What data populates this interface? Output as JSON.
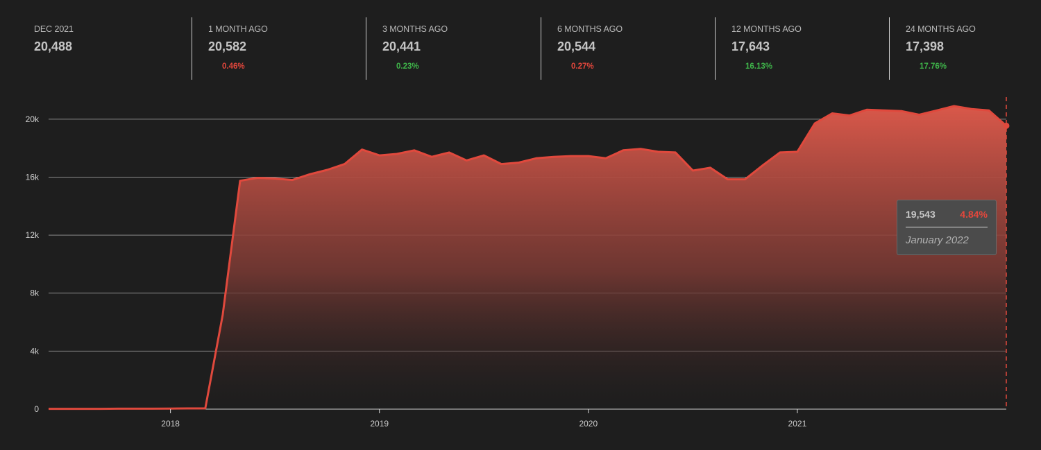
{
  "colors": {
    "background": "#1e1e1e",
    "accent": "#d9584a",
    "line": "#e0493d",
    "negative": "#e4473c",
    "positive": "#3fb54a"
  },
  "stats": [
    {
      "label": "DEC 2021",
      "value": "20,488",
      "change": "",
      "direction": ""
    },
    {
      "label": "1 MONTH AGO",
      "value": "20,582",
      "change": "0.46%",
      "direction": "negative"
    },
    {
      "label": "3 MONTHS AGO",
      "value": "20,441",
      "change": "0.23%",
      "direction": "positive"
    },
    {
      "label": "6 MONTHS AGO",
      "value": "20,544",
      "change": "0.27%",
      "direction": "negative"
    },
    {
      "label": "12 MONTHS AGO",
      "value": "17,643",
      "change": "16.13%",
      "direction": "positive"
    },
    {
      "label": "24 MONTHS AGO",
      "value": "17,398",
      "change": "17.76%",
      "direction": "positive"
    }
  ],
  "tooltip": {
    "value": "19,543",
    "change": "4.84%",
    "date": "January 2022"
  },
  "chart_data": {
    "type": "area",
    "title": "",
    "xlabel": "",
    "ylabel": "",
    "ylim": [
      0,
      22000
    ],
    "xlim": [
      "2017-06",
      "2022-01"
    ],
    "grid": true,
    "y_ticks": [
      {
        "value": 0,
        "label": "0"
      },
      {
        "value": 4000,
        "label": "4k"
      },
      {
        "value": 8000,
        "label": "8k"
      },
      {
        "value": 12000,
        "label": "12k"
      },
      {
        "value": 16000,
        "label": "16k"
      },
      {
        "value": 20000,
        "label": "20k"
      }
    ],
    "x_ticks": [
      {
        "value": "2018-01",
        "label": "2018"
      },
      {
        "value": "2019-01",
        "label": "2019"
      },
      {
        "value": "2020-01",
        "label": "2020"
      },
      {
        "value": "2021-01",
        "label": "2021"
      }
    ],
    "highlight": {
      "x": "2022-01",
      "y": 19543
    },
    "x": [
      "2017-06",
      "2017-07",
      "2017-08",
      "2017-09",
      "2017-10",
      "2017-11",
      "2017-12",
      "2018-01",
      "2018-02",
      "2018-03",
      "2018-04",
      "2018-05",
      "2018-06",
      "2018-07",
      "2018-08",
      "2018-09",
      "2018-10",
      "2018-11",
      "2018-12",
      "2019-01",
      "2019-02",
      "2019-03",
      "2019-04",
      "2019-05",
      "2019-06",
      "2019-07",
      "2019-08",
      "2019-09",
      "2019-10",
      "2019-11",
      "2019-12",
      "2020-01",
      "2020-02",
      "2020-03",
      "2020-04",
      "2020-05",
      "2020-06",
      "2020-07",
      "2020-08",
      "2020-09",
      "2020-10",
      "2020-11",
      "2020-12",
      "2021-01",
      "2021-02",
      "2021-03",
      "2021-04",
      "2021-05",
      "2021-06",
      "2021-07",
      "2021-08",
      "2021-09",
      "2021-10",
      "2021-11",
      "2021-12",
      "2022-01"
    ],
    "series": [
      {
        "values": [
          20,
          20,
          20,
          20,
          30,
          30,
          30,
          40,
          50,
          50,
          6500,
          15750,
          15950,
          15900,
          15800,
          16200,
          16500,
          16900,
          17900,
          17500,
          17600,
          17850,
          17400,
          17700,
          17150,
          17500,
          16900,
          17000,
          17300,
          17400,
          17450,
          17450,
          17300,
          17850,
          17950,
          17750,
          17700,
          16450,
          16650,
          15850,
          15850,
          16800,
          17700,
          17750,
          19700,
          20400,
          20250,
          20650,
          20600,
          20550,
          20300,
          20600,
          20900,
          20700,
          20600,
          19543
        ]
      }
    ]
  }
}
